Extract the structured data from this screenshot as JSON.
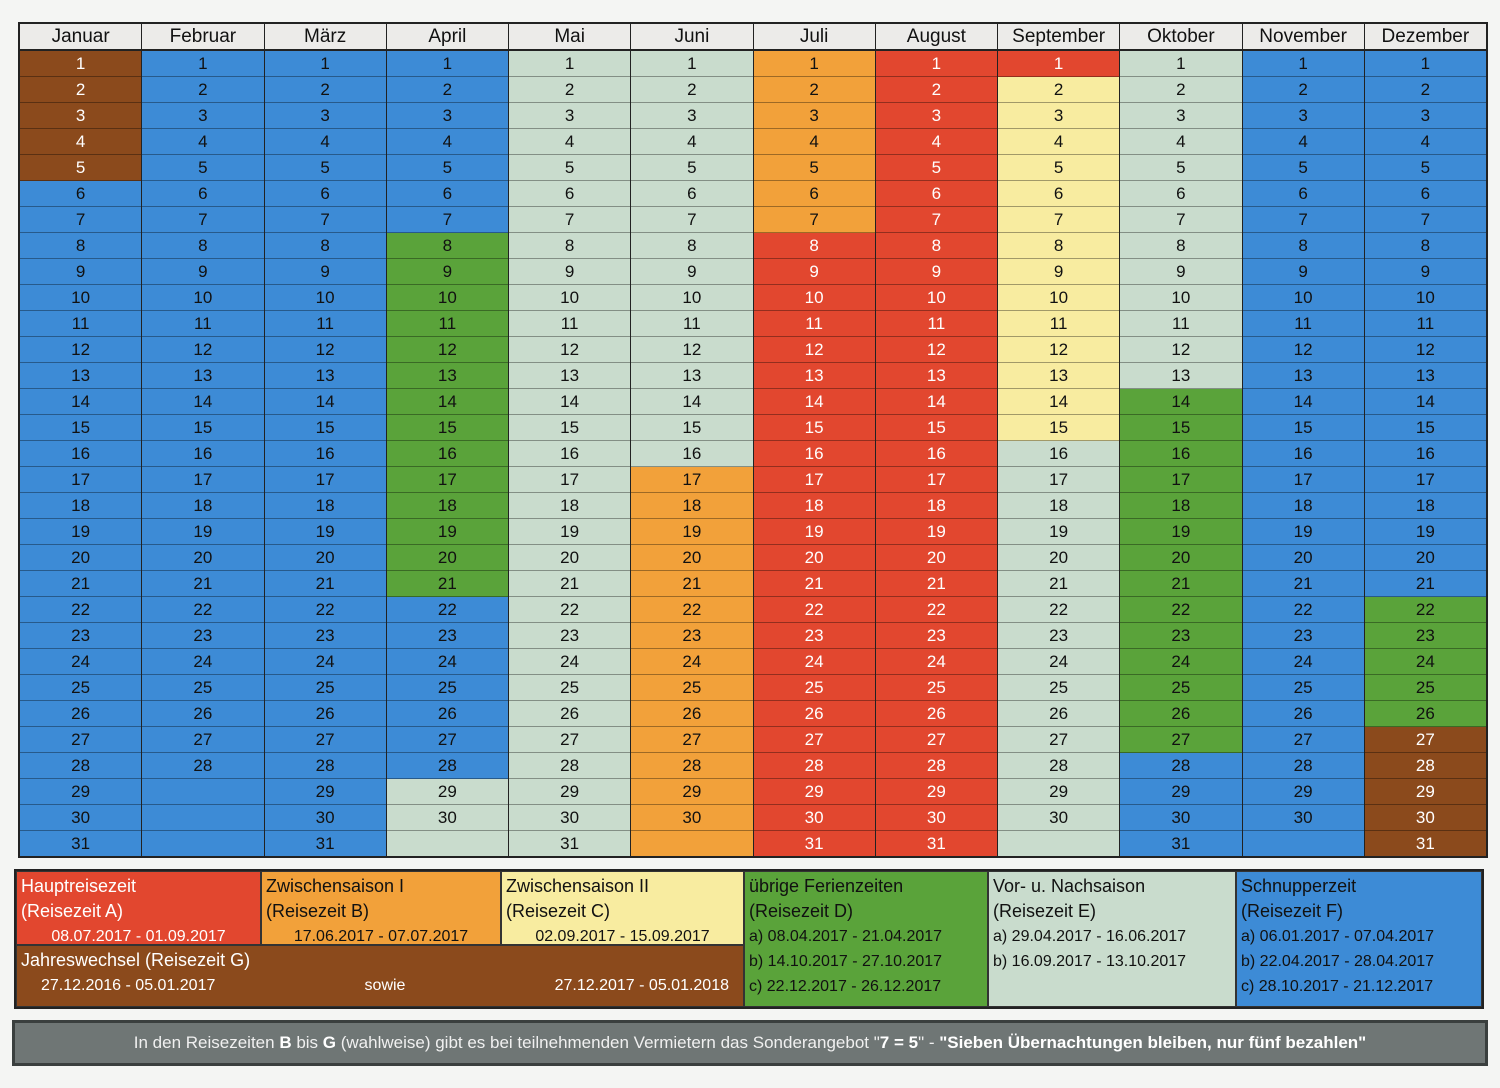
{
  "months": [
    {
      "name": "Januar",
      "days": 31,
      "colors": [
        "G",
        "G",
        "G",
        "G",
        "G",
        "F",
        "F",
        "F",
        "F",
        "F",
        "F",
        "F",
        "F",
        "F",
        "F",
        "F",
        "F",
        "F",
        "F",
        "F",
        "F",
        "F",
        "F",
        "F",
        "F",
        "F",
        "F",
        "F",
        "F",
        "F",
        "F"
      ]
    },
    {
      "name": "Februar",
      "days": 28,
      "colors": [
        "F",
        "F",
        "F",
        "F",
        "F",
        "F",
        "F",
        "F",
        "F",
        "F",
        "F",
        "F",
        "F",
        "F",
        "F",
        "F",
        "F",
        "F",
        "F",
        "F",
        "F",
        "F",
        "F",
        "F",
        "F",
        "F",
        "F",
        "F",
        "F",
        "F",
        "F"
      ]
    },
    {
      "name": "März",
      "days": 31,
      "colors": [
        "F",
        "F",
        "F",
        "F",
        "F",
        "F",
        "F",
        "F",
        "F",
        "F",
        "F",
        "F",
        "F",
        "F",
        "F",
        "F",
        "F",
        "F",
        "F",
        "F",
        "F",
        "F",
        "F",
        "F",
        "F",
        "F",
        "F",
        "F",
        "F",
        "F",
        "F"
      ]
    },
    {
      "name": "April",
      "days": 30,
      "colors": [
        "F",
        "F",
        "F",
        "F",
        "F",
        "F",
        "F",
        "D",
        "D",
        "D",
        "D",
        "D",
        "D",
        "D",
        "D",
        "D",
        "D",
        "D",
        "D",
        "D",
        "D",
        "F",
        "F",
        "F",
        "F",
        "F",
        "F",
        "F",
        "E",
        "E",
        "N"
      ]
    },
    {
      "name": "Mai",
      "days": 31,
      "colors": [
        "E",
        "E",
        "E",
        "E",
        "E",
        "E",
        "E",
        "E",
        "E",
        "E",
        "E",
        "E",
        "E",
        "E",
        "E",
        "E",
        "E",
        "E",
        "E",
        "E",
        "E",
        "E",
        "E",
        "E",
        "E",
        "E",
        "E",
        "E",
        "E",
        "E",
        "E"
      ]
    },
    {
      "name": "Juni",
      "days": 30,
      "colors": [
        "E",
        "E",
        "E",
        "E",
        "E",
        "E",
        "E",
        "E",
        "E",
        "E",
        "E",
        "E",
        "E",
        "E",
        "E",
        "E",
        "B",
        "B",
        "B",
        "B",
        "B",
        "B",
        "B",
        "B",
        "B",
        "B",
        "B",
        "B",
        "B",
        "B",
        "B"
      ]
    },
    {
      "name": "Juli",
      "days": 31,
      "colors": [
        "B",
        "B",
        "B",
        "B",
        "B",
        "B",
        "B",
        "A",
        "A",
        "A",
        "A",
        "A",
        "A",
        "A",
        "A",
        "A",
        "A",
        "A",
        "A",
        "A",
        "A",
        "A",
        "A",
        "A",
        "A",
        "A",
        "A",
        "A",
        "A",
        "A",
        "A"
      ]
    },
    {
      "name": "August",
      "days": 31,
      "colors": [
        "A",
        "A",
        "A",
        "A",
        "A",
        "A",
        "A",
        "A",
        "A",
        "A",
        "A",
        "A",
        "A",
        "A",
        "A",
        "A",
        "A",
        "A",
        "A",
        "A",
        "A",
        "A",
        "A",
        "A",
        "A",
        "A",
        "A",
        "A",
        "A",
        "A",
        "A"
      ]
    },
    {
      "name": "September",
      "days": 30,
      "colors": [
        "A",
        "C",
        "C",
        "C",
        "C",
        "C",
        "C",
        "C",
        "C",
        "C",
        "C",
        "C",
        "C",
        "C",
        "C",
        "E",
        "E",
        "E",
        "E",
        "E",
        "E",
        "E",
        "E",
        "E",
        "E",
        "E",
        "E",
        "E",
        "E",
        "E",
        "N"
      ]
    },
    {
      "name": "Oktober",
      "days": 31,
      "colors": [
        "E",
        "E",
        "E",
        "E",
        "E",
        "E",
        "E",
        "E",
        "E",
        "E",
        "E",
        "E",
        "E",
        "D",
        "D",
        "D",
        "D",
        "D",
        "D",
        "D",
        "D",
        "D",
        "D",
        "D",
        "D",
        "D",
        "D",
        "F",
        "F",
        "F",
        "F"
      ]
    },
    {
      "name": "November",
      "days": 30,
      "colors": [
        "F",
        "F",
        "F",
        "F",
        "F",
        "F",
        "F",
        "F",
        "F",
        "F",
        "F",
        "F",
        "F",
        "F",
        "F",
        "F",
        "F",
        "F",
        "F",
        "F",
        "F",
        "F",
        "F",
        "F",
        "F",
        "F",
        "F",
        "F",
        "F",
        "F",
        "F"
      ]
    },
    {
      "name": "Dezember",
      "days": 31,
      "colors": [
        "F",
        "F",
        "F",
        "F",
        "F",
        "F",
        "F",
        "F",
        "F",
        "F",
        "F",
        "F",
        "F",
        "F",
        "F",
        "F",
        "F",
        "F",
        "F",
        "F",
        "F",
        "D",
        "D",
        "D",
        "D",
        "D",
        "G",
        "G",
        "G",
        "G",
        "G"
      ]
    }
  ],
  "colors": {
    "A": "#e2472f",
    "B": "#f2a13a",
    "C": "#f8eca0",
    "D": "#5aa33a",
    "E": "#c9dccd",
    "F": "#3d8bd6",
    "G": "#8b4a1c"
  },
  "legend": {
    "a": {
      "title": "Hauptreisezeit",
      "sub": "(Reisezeit A)",
      "range": "08.07.2017 - 01.09.2017"
    },
    "b": {
      "title": "Zwischensaison I",
      "sub": "(Reisezeit B)",
      "range": "17.06.2017 - 07.07.2017"
    },
    "c": {
      "title": "Zwischensaison II",
      "sub": "(Reisezeit C)",
      "range": "02.09.2017 - 15.09.2017"
    },
    "d": {
      "title": "übrige Ferienzeiten",
      "sub": "(Reisezeit D)",
      "r1": "a) 08.04.2017 - 21.04.2017",
      "r2": "b) 14.10.2017 - 27.10.2017",
      "r3": "c) 22.12.2017 - 26.12.2017"
    },
    "e": {
      "title": "Vor- u. Nachsaison",
      "sub": "(Reisezeit E)",
      "r1": "a) 29.04.2017 - 16.06.2017",
      "r2": "b) 16.09.2017 - 13.10.2017"
    },
    "f": {
      "title": "Schnupperzeit",
      "sub": "(Reisezeit F)",
      "r1": "a) 06.01.2017 - 07.04.2017",
      "r2": "b) 22.04.2017 - 28.04.2017",
      "r3": "c) 28.10.2017 - 21.12.2017"
    },
    "g": {
      "title": "Jahreswechsel (Reisezeit G)",
      "r1": "27.12.2016 - 05.01.2017",
      "mid": "sowie",
      "r2": "27.12.2017 - 05.01.2018"
    }
  },
  "note": {
    "t1": "In den Reisezeiten ",
    "b1": "B",
    "t2": " bis ",
    "b2": "G",
    "t3": " (wahlweise) gibt es bei teilnehmenden Vermietern das Sonderangebot \"",
    "b3": "7 = 5",
    "t4": "\" - ",
    "b4": "\"Sieben Übernachtungen bleiben, nur fünf bezahlen\""
  }
}
